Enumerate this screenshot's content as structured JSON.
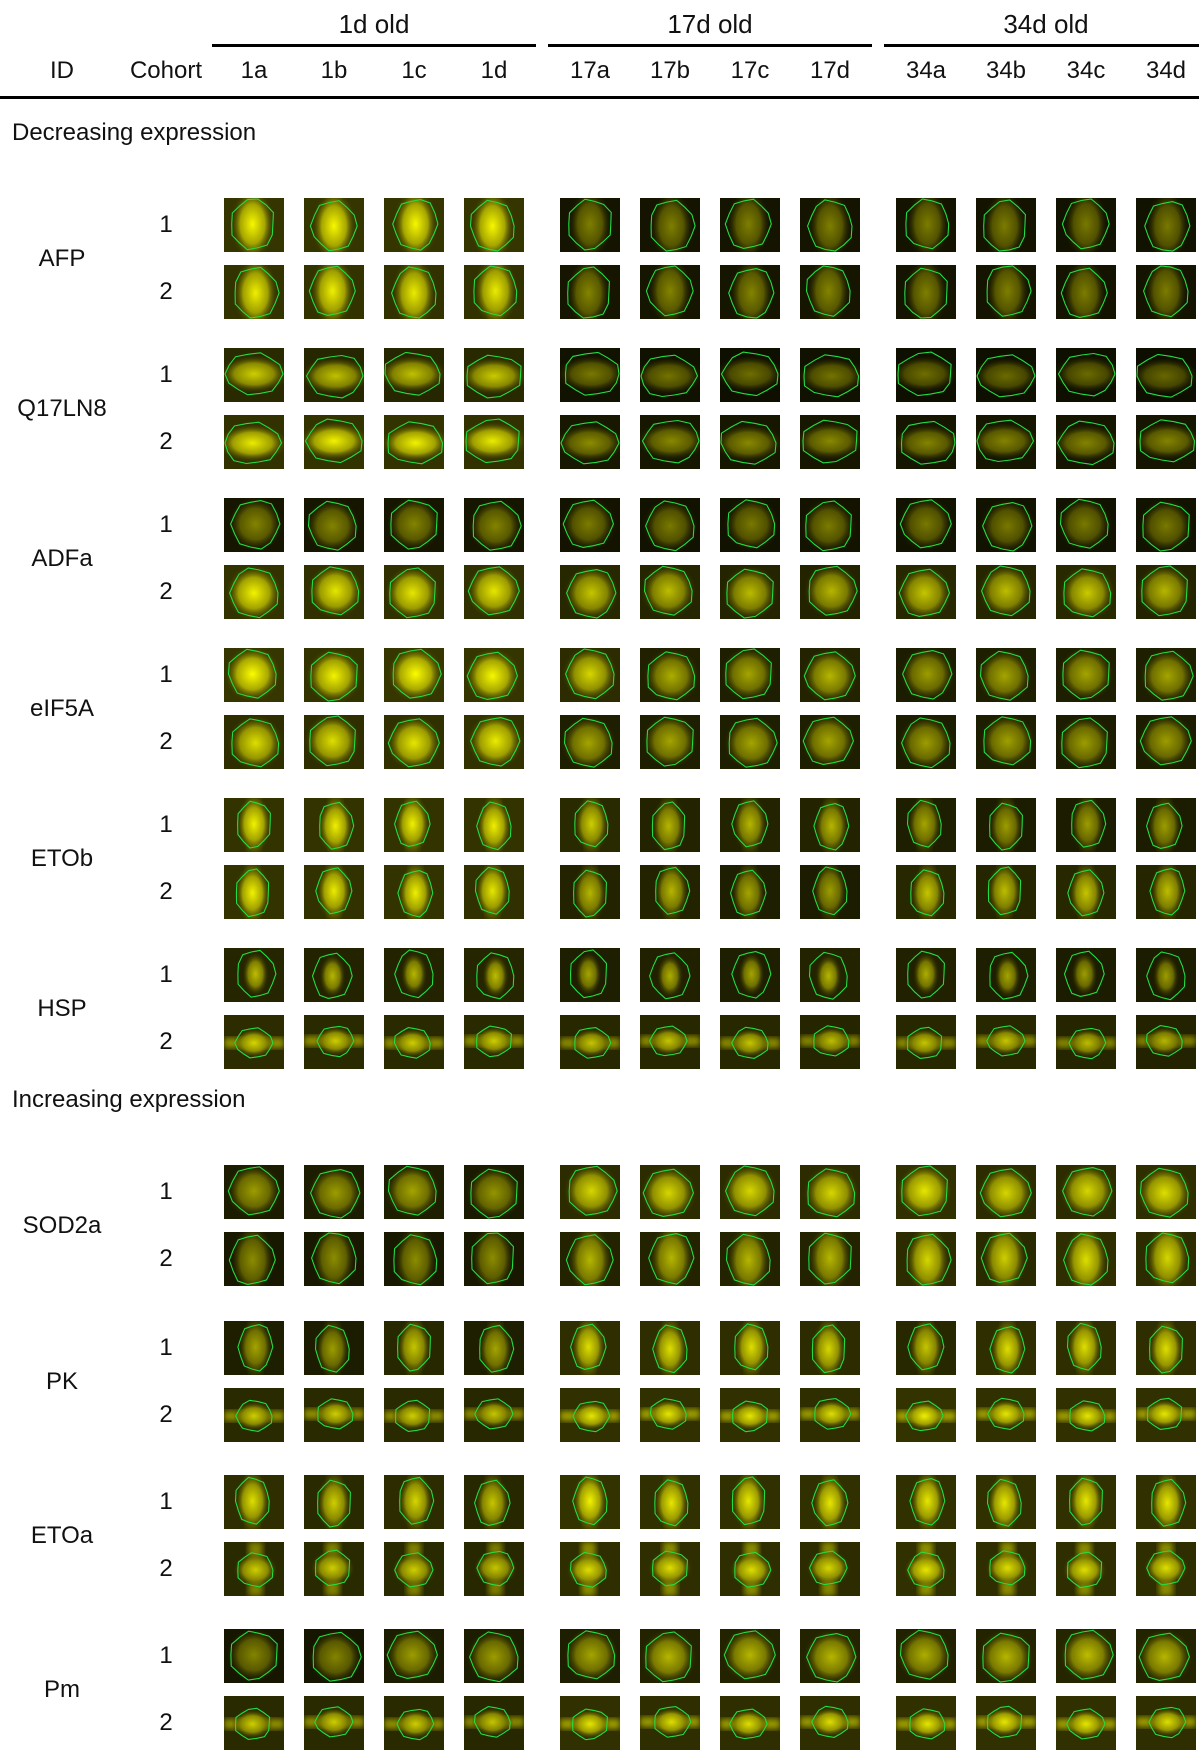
{
  "header": {
    "id_label": "ID",
    "cohort_label": "Cohort",
    "groups": [
      {
        "label": "1d old",
        "samples": [
          "1a",
          "1b",
          "1c",
          "1d"
        ]
      },
      {
        "label": "17d old",
        "samples": [
          "17a",
          "17b",
          "17c",
          "17d"
        ]
      },
      {
        "label": "34d old",
        "samples": [
          "34a",
          "34b",
          "34c",
          "34d"
        ]
      }
    ]
  },
  "sections": [
    {
      "title": "Decreasing expression",
      "genes": [
        {
          "id": "AFP",
          "cohorts": [
            {
              "cohort": "1",
              "intensity": [
                0.95,
                0.95,
                0.95,
                0.95,
                0.22,
                0.22,
                0.22,
                0.22,
                0.2,
                0.2,
                0.18,
                0.18
              ],
              "shape": "tall"
            },
            {
              "cohort": "2",
              "intensity": [
                0.9,
                0.9,
                0.88,
                0.88,
                0.25,
                0.25,
                0.25,
                0.25,
                0.22,
                0.22,
                0.2,
                0.2
              ],
              "shape": "tall"
            }
          ]
        },
        {
          "id": "Q17LN8",
          "cohorts": [
            {
              "cohort": "1",
              "intensity": [
                0.7,
                0.62,
                0.62,
                0.68,
                0.18,
                0.15,
                0.12,
                0.15,
                0.12,
                0.1,
                0.1,
                0.08
              ],
              "shape": "wide"
            },
            {
              "cohort": "2",
              "intensity": [
                0.88,
                0.92,
                0.92,
                0.88,
                0.3,
                0.28,
                0.28,
                0.28,
                0.25,
                0.25,
                0.25,
                0.25
              ],
              "shape": "wide"
            }
          ]
        },
        {
          "id": "ADFa",
          "cohorts": [
            {
              "cohort": "1",
              "intensity": [
                0.25,
                0.25,
                0.25,
                0.25,
                0.2,
                0.18,
                0.18,
                0.2,
                0.18,
                0.18,
                0.18,
                0.18
              ],
              "shape": "round"
            },
            {
              "cohort": "2",
              "intensity": [
                0.92,
                0.85,
                0.85,
                0.85,
                0.65,
                0.6,
                0.58,
                0.55,
                0.65,
                0.6,
                0.68,
                0.55
              ],
              "shape": "round"
            }
          ]
        },
        {
          "id": "eIF5A",
          "cohorts": [
            {
              "cohort": "1",
              "intensity": [
                0.98,
                0.92,
                0.98,
                0.95,
                0.75,
                0.5,
                0.45,
                0.55,
                0.4,
                0.45,
                0.45,
                0.45
              ],
              "shape": "round"
            },
            {
              "cohort": "2",
              "intensity": [
                0.8,
                0.8,
                0.85,
                0.88,
                0.45,
                0.45,
                0.45,
                0.45,
                0.4,
                0.42,
                0.4,
                0.4
              ],
              "shape": "round"
            }
          ]
        },
        {
          "id": "ETOb",
          "cohorts": [
            {
              "cohort": "1",
              "intensity": [
                0.92,
                0.9,
                0.9,
                0.9,
                0.7,
                0.55,
                0.55,
                0.55,
                0.45,
                0.4,
                0.4,
                0.4
              ],
              "shape": "tallnarrow"
            },
            {
              "cohort": "2",
              "intensity": [
                0.92,
                0.88,
                0.9,
                0.85,
                0.55,
                0.55,
                0.45,
                0.4,
                0.65,
                0.6,
                0.65,
                0.6
              ],
              "shape": "tallnarrow"
            }
          ]
        },
        {
          "id": "HSP",
          "cohorts": [
            {
              "cohort": "1",
              "intensity": [
                0.6,
                0.55,
                0.55,
                0.6,
                0.45,
                0.5,
                0.45,
                0.55,
                0.5,
                0.45,
                0.4,
                0.4
              ],
              "shape": "streak"
            },
            {
              "cohort": "2",
              "intensity": [
                0.75,
                0.7,
                0.7,
                0.7,
                0.65,
                0.65,
                0.65,
                0.6,
                0.65,
                0.65,
                0.6,
                0.55
              ],
              "shape": "band"
            }
          ]
        }
      ]
    },
    {
      "title": "Increasing expression",
      "genes": [
        {
          "id": "SOD2a",
          "cohorts": [
            {
              "cohort": "1",
              "intensity": [
                0.4,
                0.4,
                0.45,
                0.35,
                0.75,
                0.75,
                0.75,
                0.75,
                0.85,
                0.75,
                0.75,
                0.8
              ],
              "shape": "round"
            },
            {
              "cohort": "2",
              "intensity": [
                0.3,
                0.3,
                0.3,
                0.3,
                0.55,
                0.55,
                0.55,
                0.55,
                0.75,
                0.7,
                0.8,
                0.75
              ],
              "shape": "tall"
            }
          ]
        },
        {
          "id": "PK",
          "cohorts": [
            {
              "cohort": "1",
              "intensity": [
                0.45,
                0.4,
                0.65,
                0.45,
                0.8,
                0.8,
                0.8,
                0.75,
                0.65,
                0.8,
                0.8,
                0.8
              ],
              "shape": "tallnarrow"
            },
            {
              "cohort": "2",
              "intensity": [
                0.7,
                0.7,
                0.7,
                0.65,
                0.85,
                0.85,
                0.85,
                0.8,
                0.9,
                0.85,
                0.85,
                0.85
              ],
              "shape": "band"
            }
          ]
        },
        {
          "id": "ETOa",
          "cohorts": [
            {
              "cohort": "1",
              "intensity": [
                0.8,
                0.7,
                0.75,
                0.65,
                0.92,
                0.85,
                0.85,
                0.85,
                0.85,
                0.85,
                0.85,
                0.85
              ],
              "shape": "tallnarrow"
            },
            {
              "cohort": "2",
              "intensity": [
                0.7,
                0.7,
                0.7,
                0.65,
                0.8,
                0.8,
                0.8,
                0.75,
                0.85,
                0.8,
                0.8,
                0.8
              ],
              "shape": "column"
            }
          ]
        },
        {
          "id": "Pm",
          "cohorts": [
            {
              "cohort": "1",
              "intensity": [
                0.25,
                0.25,
                0.4,
                0.4,
                0.45,
                0.55,
                0.55,
                0.55,
                0.5,
                0.55,
                0.6,
                0.55
              ],
              "shape": "round"
            },
            {
              "cohort": "2",
              "intensity": [
                0.7,
                0.7,
                0.7,
                0.65,
                0.85,
                0.8,
                0.8,
                0.8,
                0.85,
                0.85,
                0.85,
                0.8
              ],
              "shape": "band"
            }
          ]
        }
      ]
    }
  ]
}
